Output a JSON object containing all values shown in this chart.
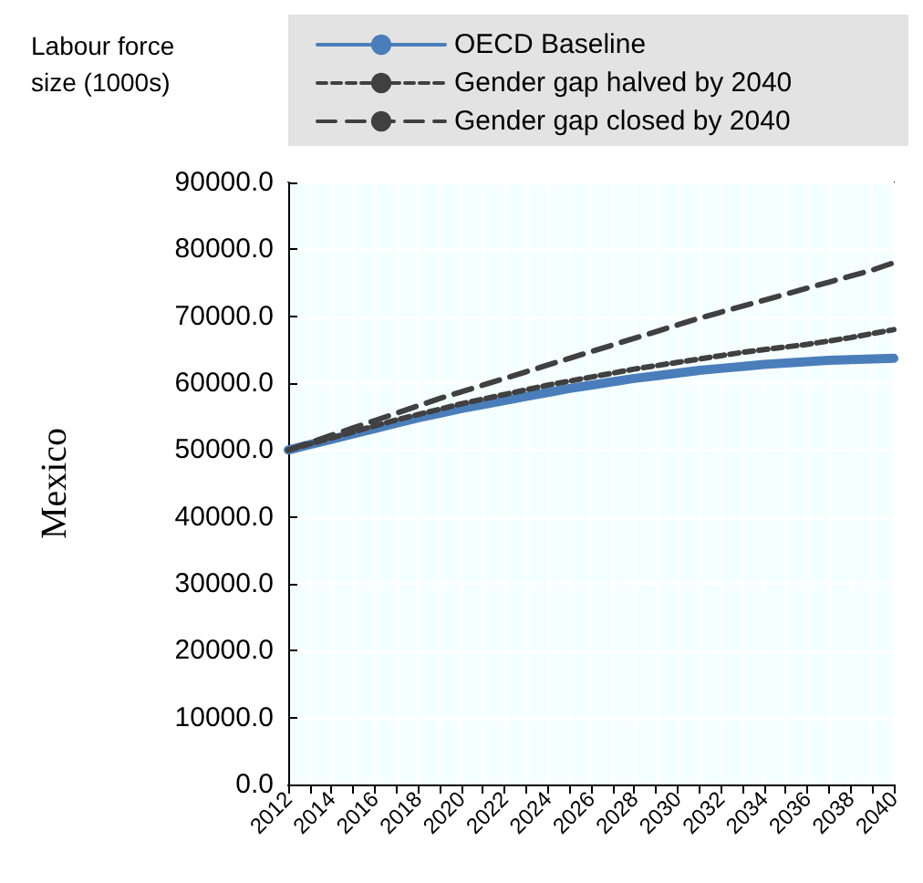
{
  "chart_data": {
    "type": "line",
    "title": "Labour force size (1000s)",
    "ylabel": "Mexico",
    "categories": [
      "2012",
      null,
      "2014",
      null,
      "2016",
      null,
      "2018",
      null,
      "2020",
      null,
      "2022",
      null,
      "2024",
      null,
      "2026",
      null,
      "2028",
      null,
      "2030",
      null,
      "2032",
      null,
      "2034",
      null,
      "2036",
      null,
      "2038",
      null,
      "2040"
    ],
    "series": [
      {
        "name": "OECD Baseline",
        "color": "#4a7ebb",
        "line_style": "solid",
        "values": [
          50000,
          50800,
          51600,
          52400,
          53200,
          54000,
          54800,
          55500,
          56200,
          56800,
          57400,
          58000,
          58600,
          59200,
          59700,
          60200,
          60700,
          61100,
          61500,
          61900,
          62200,
          62500,
          62800,
          63000,
          63200,
          63400,
          63500,
          63600,
          63700
        ]
      },
      {
        "name": "Gender gap halved by 2040",
        "color": "#404040",
        "line_style": "dotted",
        "values": [
          50000,
          50900,
          51800,
          52700,
          53600,
          54500,
          55300,
          56100,
          56900,
          57600,
          58300,
          59000,
          59700,
          60300,
          60900,
          61500,
          62100,
          62600,
          63100,
          63600,
          64100,
          64600,
          65000,
          65400,
          65800,
          66300,
          66800,
          67400,
          68000
        ]
      },
      {
        "name": "Gender gap closed by 2040",
        "color": "#404040",
        "line_style": "dashed",
        "values": [
          50000,
          51100,
          52200,
          53300,
          54400,
          55500,
          56600,
          57700,
          58700,
          59700,
          60700,
          61700,
          62700,
          63700,
          64700,
          65700,
          66700,
          67700,
          68700,
          69700,
          70600,
          71500,
          72400,
          73300,
          74200,
          75100,
          76000,
          76900,
          78000
        ]
      }
    ],
    "ylim": [
      0,
      90000
    ],
    "yticks": [
      {
        "value": 0,
        "label": "0.0"
      },
      {
        "value": 10000,
        "label": "10000.0"
      },
      {
        "value": 20000,
        "label": "20000.0"
      },
      {
        "value": 30000,
        "label": "30000.0"
      },
      {
        "value": 40000,
        "label": "40000.0"
      },
      {
        "value": 50000,
        "label": "50000.0"
      },
      {
        "value": 60000,
        "label": "60000.0"
      },
      {
        "value": 70000,
        "label": "70000.0"
      },
      {
        "value": 80000,
        "label": "80000.0"
      },
      {
        "value": 90000,
        "label": "90000.0"
      }
    ],
    "grid": true,
    "legend": "top",
    "marker": "none"
  }
}
